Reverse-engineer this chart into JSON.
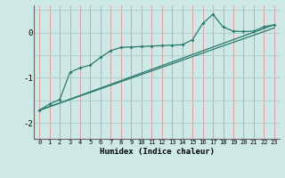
{
  "title": "",
  "xlabel": "Humidex (Indice chaleur)",
  "ylabel": "",
  "bg_color": "#cde8e5",
  "line_color": "#2a7a6e",
  "xlim": [
    -0.5,
    23.5
  ],
  "ylim": [
    -2.35,
    0.6
  ],
  "yticks": [
    -2,
    -1,
    0
  ],
  "xticks": [
    0,
    1,
    2,
    3,
    4,
    5,
    6,
    7,
    8,
    9,
    10,
    11,
    12,
    13,
    14,
    15,
    16,
    17,
    18,
    19,
    20,
    21,
    22,
    23
  ],
  "line1_x": [
    0,
    1,
    2,
    3,
    4,
    5,
    6,
    7,
    8,
    9,
    10,
    11,
    12,
    13,
    14,
    15,
    16,
    17,
    18,
    19,
    20,
    21,
    22,
    23
  ],
  "line1_y": [
    -1.72,
    -1.58,
    -1.48,
    -0.88,
    -0.78,
    -0.72,
    -0.55,
    -0.4,
    -0.33,
    -0.32,
    -0.31,
    -0.3,
    -0.29,
    -0.28,
    -0.27,
    -0.16,
    0.2,
    0.4,
    0.12,
    0.03,
    0.02,
    0.03,
    0.13,
    0.17
  ],
  "line2_x": [
    0,
    23
  ],
  "line2_y": [
    -1.72,
    0.17
  ],
  "line3_x": [
    0,
    23
  ],
  "line3_y": [
    -1.72,
    0.1
  ],
  "grid_color_v": "#d89898",
  "grid_color_h": "#aaccc8",
  "xlabel_fontsize": 6.5,
  "ytick_fontsize": 6.5,
  "xtick_fontsize": 5.0
}
